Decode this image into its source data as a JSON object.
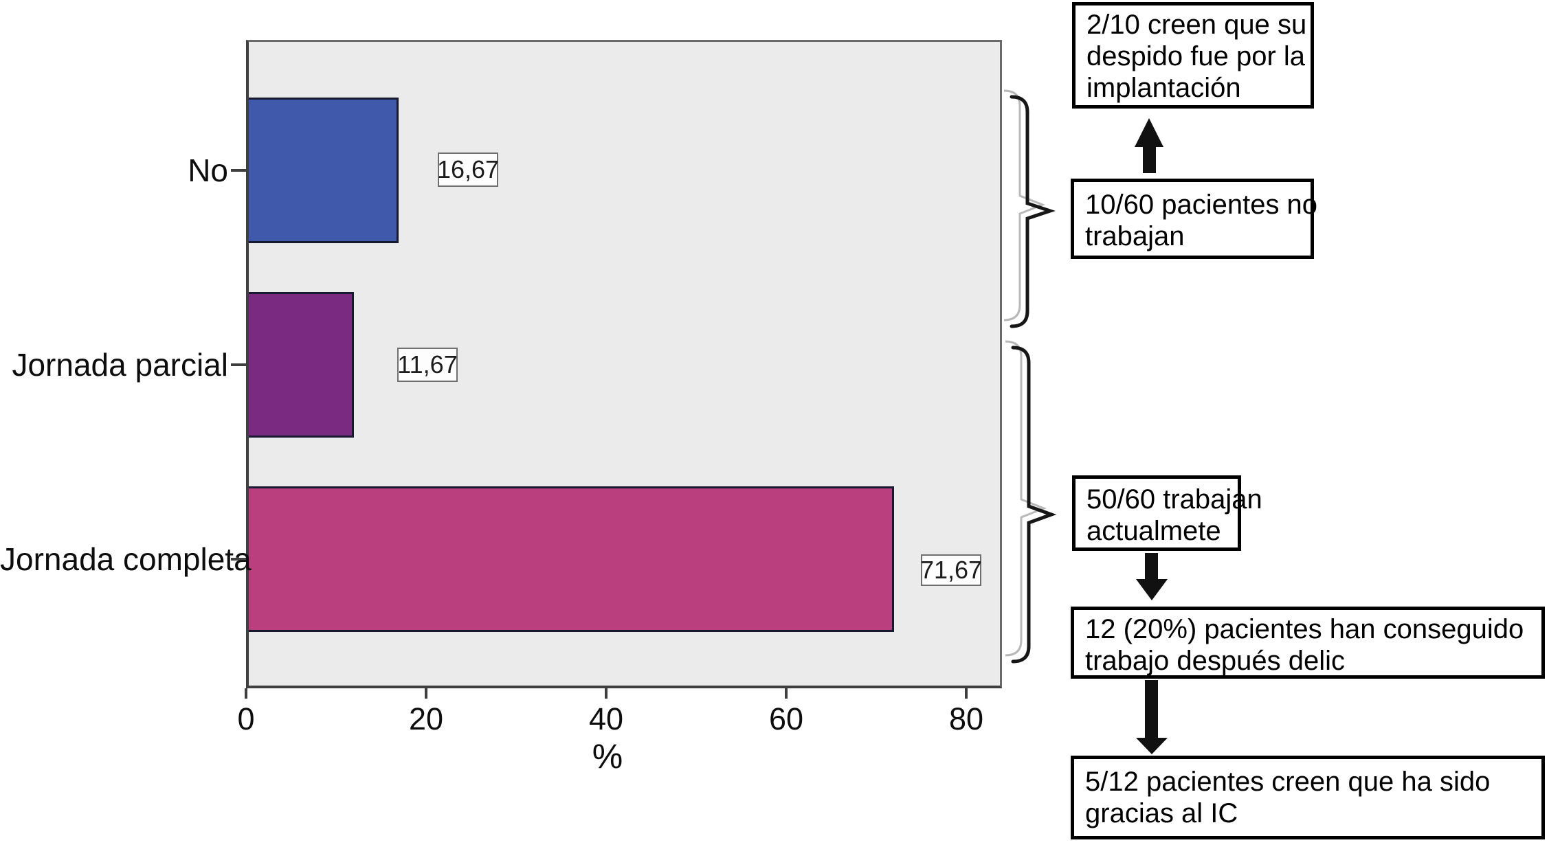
{
  "chart_data": {
    "type": "bar",
    "orientation": "horizontal",
    "title": "",
    "categories": [
      "No",
      "Jornada parcial",
      "Jornada completa"
    ],
    "values": [
      16.67,
      11.67,
      71.67
    ],
    "value_labels": [
      "16,67",
      "11,67",
      "71,67"
    ],
    "xlabel": "%",
    "xticks": [
      "0",
      "20",
      "40",
      "60",
      "80"
    ],
    "xlim": [
      0,
      84
    ],
    "grid": false,
    "legend": "none",
    "plot_bg_color": "#ebebeb",
    "bar_colors": [
      "#4059aa",
      "#7b2a82",
      "#ba3f7e"
    ],
    "bar_border_color": "#181830"
  },
  "flow": {
    "boxes": [
      {
        "id": "despido",
        "lines": [
          "2/10 creen que su",
          "despido fue por la",
          "implantación"
        ]
      },
      {
        "id": "no-trabajan",
        "lines": [
          "10/60 pacientes no",
          "trabajan"
        ]
      },
      {
        "id": "trabajan",
        "lines": [
          "50/60 trabajan",
          "actualmete"
        ]
      },
      {
        "id": "conseguido",
        "lines": [
          "12 (20%) pacientes han conseguido",
          "trabajo después delic"
        ]
      },
      {
        "id": "gracias",
        "lines": [
          "5/12 pacientes creen que ha sido",
          "gracias al IC"
        ]
      }
    ],
    "arrows": [
      {
        "direction": "up",
        "from": "no-trabajan",
        "to": "despido"
      },
      {
        "direction": "down",
        "from": "trabajan",
        "to": "conseguido"
      },
      {
        "direction": "down",
        "from": "conseguido",
        "to": "gracias"
      }
    ],
    "arrow_color": "#111111",
    "brace_color": "#161616",
    "brace_shadow_color": "#b8b8b8"
  }
}
